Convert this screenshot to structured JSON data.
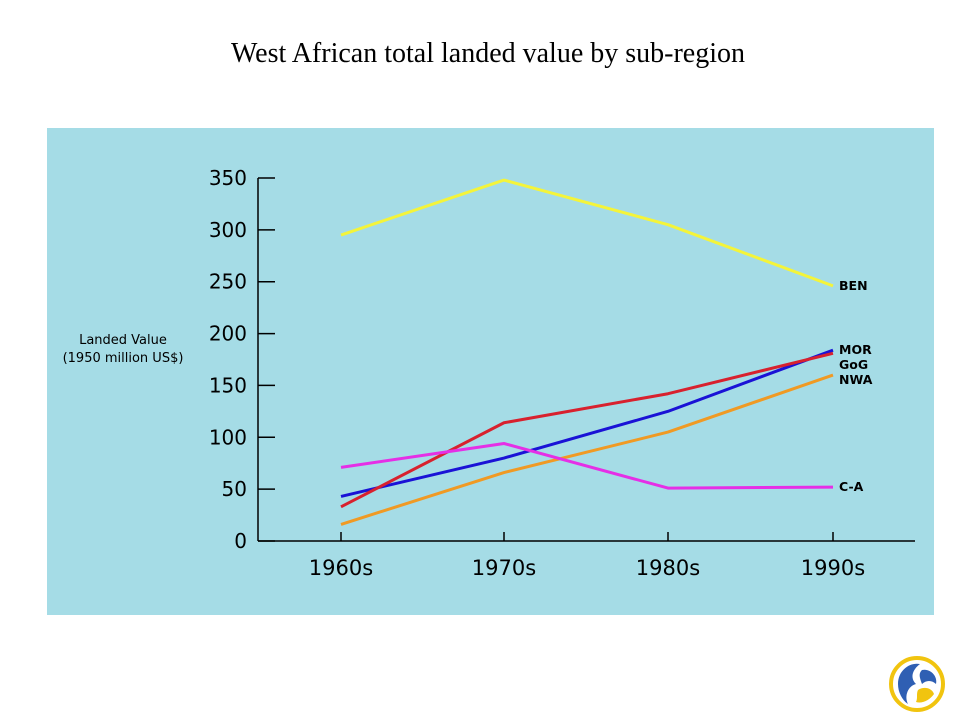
{
  "title": "West African total landed value by sub-region",
  "chart_data": {
    "type": "line",
    "categories": [
      "1960s",
      "1970s",
      "1980s",
      "1990s"
    ],
    "ylabel_lines": [
      "Landed Value",
      "(1950 million US$)"
    ],
    "xlabel": "",
    "ylim": [
      0,
      350
    ],
    "yticks": [
      0,
      50,
      100,
      150,
      200,
      250,
      300,
      350
    ],
    "grid": false,
    "series": [
      {
        "name": "BEN",
        "color": "#f4f43a",
        "values": [
          295,
          348,
          305,
          246
        ]
      },
      {
        "name": "MOR",
        "color": "#1a12d6",
        "values": [
          43,
          80,
          125,
          184
        ]
      },
      {
        "name": "GoG",
        "color": "#d8212e",
        "values": [
          33,
          114,
          142,
          181
        ]
      },
      {
        "name": "NWA",
        "color": "#f09a24",
        "values": [
          16,
          66,
          105,
          160
        ]
      },
      {
        "name": "C-A",
        "color": "#e52fe6",
        "values": [
          71,
          94,
          51,
          52
        ]
      }
    ],
    "label_order": [
      "BEN",
      "MOR",
      "GoG",
      "NWA",
      "C-A"
    ]
  },
  "colors": {
    "panel_background": "#a5dce6",
    "axis": "#000000"
  },
  "logo": {
    "icon": "organization-logo-icon"
  }
}
